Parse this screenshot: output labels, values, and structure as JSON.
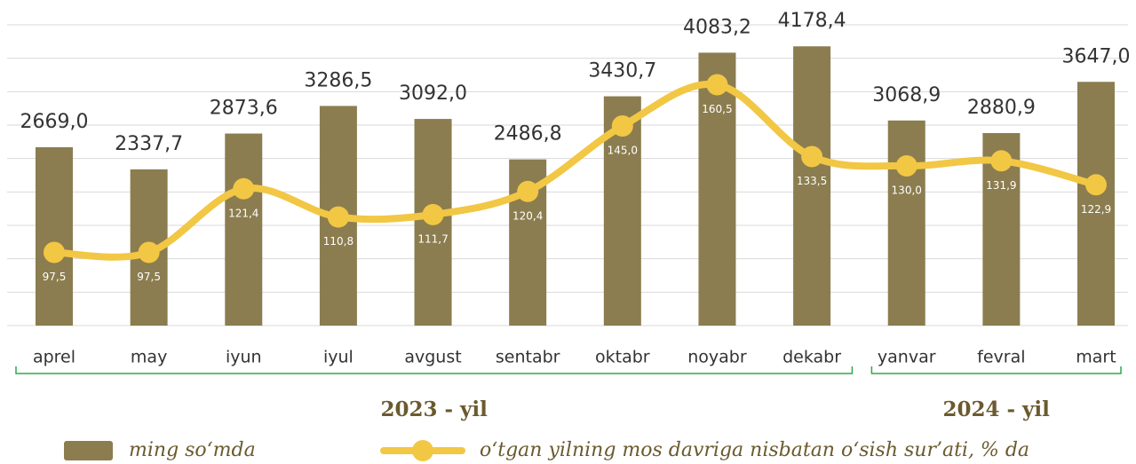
{
  "chart_data": {
    "type": "bar",
    "categories": [
      "aprel",
      "may",
      "iyun",
      "iyul",
      "avgust",
      "sentabr",
      "oktabr",
      "noyabr",
      "dekabr",
      "yanvar",
      "fevral",
      "mart"
    ],
    "series": [
      {
        "name": "ming so‘mda",
        "type": "bar",
        "color": "#8b7d4f",
        "values": [
          2669.0,
          2337.7,
          2873.6,
          3286.5,
          3092.0,
          2486.8,
          3430.7,
          4083.2,
          4178.4,
          3068.9,
          2880.9,
          3647.0
        ],
        "value_labels": [
          "2669,0",
          "2337,7",
          "2873,6",
          "3286,5",
          "3092,0",
          "2486,8",
          "3430,7",
          "4083,2",
          "4178,4",
          "3068,9",
          "2880,9",
          "3647,0"
        ]
      },
      {
        "name": "o‘tgan yilning mos davriga nisbatan o‘sish sur’ati, % da",
        "type": "line",
        "axis": "y2",
        "color": "#f2c744",
        "values": [
          97.5,
          97.5,
          121.4,
          110.8,
          111.7,
          120.4,
          145.0,
          160.5,
          133.5,
          130.0,
          131.9,
          122.9
        ],
        "value_labels": [
          "97,5",
          "97,5",
          "121,4",
          "110,8",
          "111,7",
          "120,4",
          "145,0",
          "160,5",
          "133,5",
          "130,0",
          "131,9",
          "122,9"
        ]
      }
    ],
    "groups": [
      {
        "label": "2023 - yil",
        "span": 9
      },
      {
        "label": "2024 - yil",
        "span": 3
      }
    ],
    "ylim": [
      0,
      4500
    ],
    "yticks": [
      0,
      500,
      1000,
      1500,
      2000,
      2500,
      3000,
      3500,
      4000,
      4500
    ],
    "y2lim": [
      70,
      183
    ],
    "grid": true,
    "legend": "bottom"
  }
}
